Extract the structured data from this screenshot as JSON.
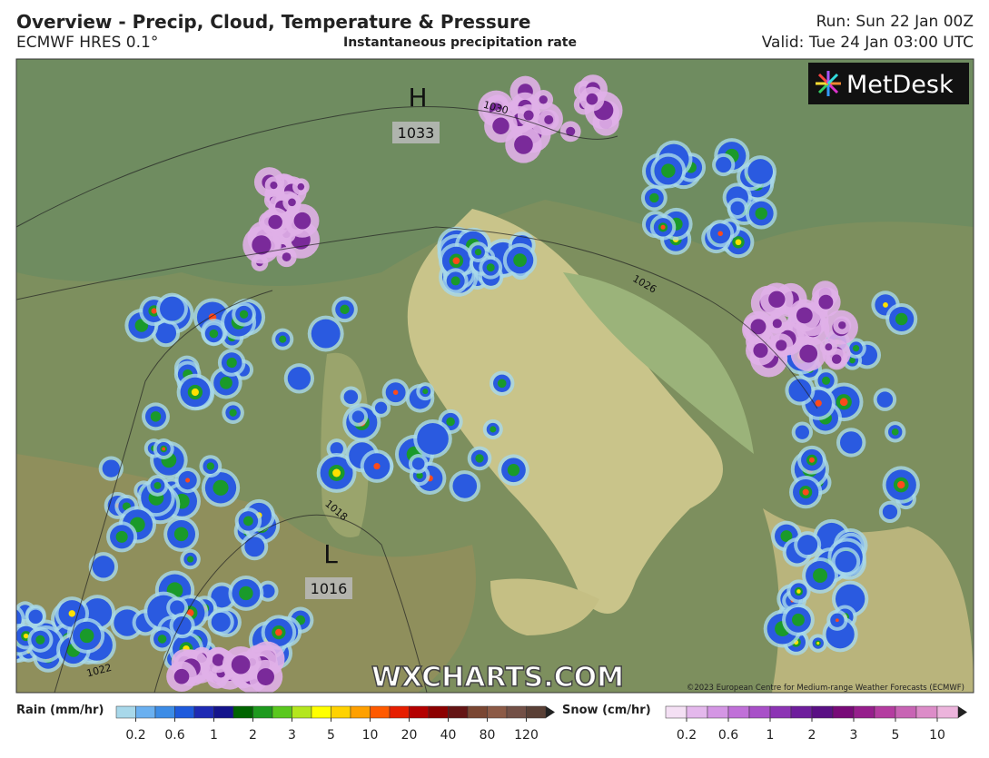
{
  "header": {
    "title": "Overview - Precip, Cloud, Temperature & Pressure",
    "model": "ECMWF HRES 0.1°",
    "product": "Instantaneous precipitation rate",
    "run": "Run: Sun 22 Jan 00Z",
    "valid": "Valid: Tue 24 Jan 03:00 UTC"
  },
  "map": {
    "logo": "MetDesk",
    "watermark": "WXCHARTS.COM",
    "copyright": "©2023 European Centre for Medium-range Weather Forecasts (ECMWF)",
    "pressure_centers": [
      {
        "symbol": "H",
        "value": 1033
      },
      {
        "symbol": "L",
        "value": 1016
      }
    ],
    "isobar_labels": [
      1030,
      1026,
      1018,
      1022
    ]
  },
  "legend": {
    "rain": {
      "label": "Rain (mm/hr)",
      "ticks": [
        0.2,
        0.6,
        1,
        2,
        3,
        5,
        10,
        20,
        40,
        80,
        120
      ]
    },
    "snow": {
      "label": "Snow (cm/hr)",
      "ticks": [
        0.2,
        0.6,
        1,
        2,
        3,
        5,
        10
      ]
    }
  }
}
